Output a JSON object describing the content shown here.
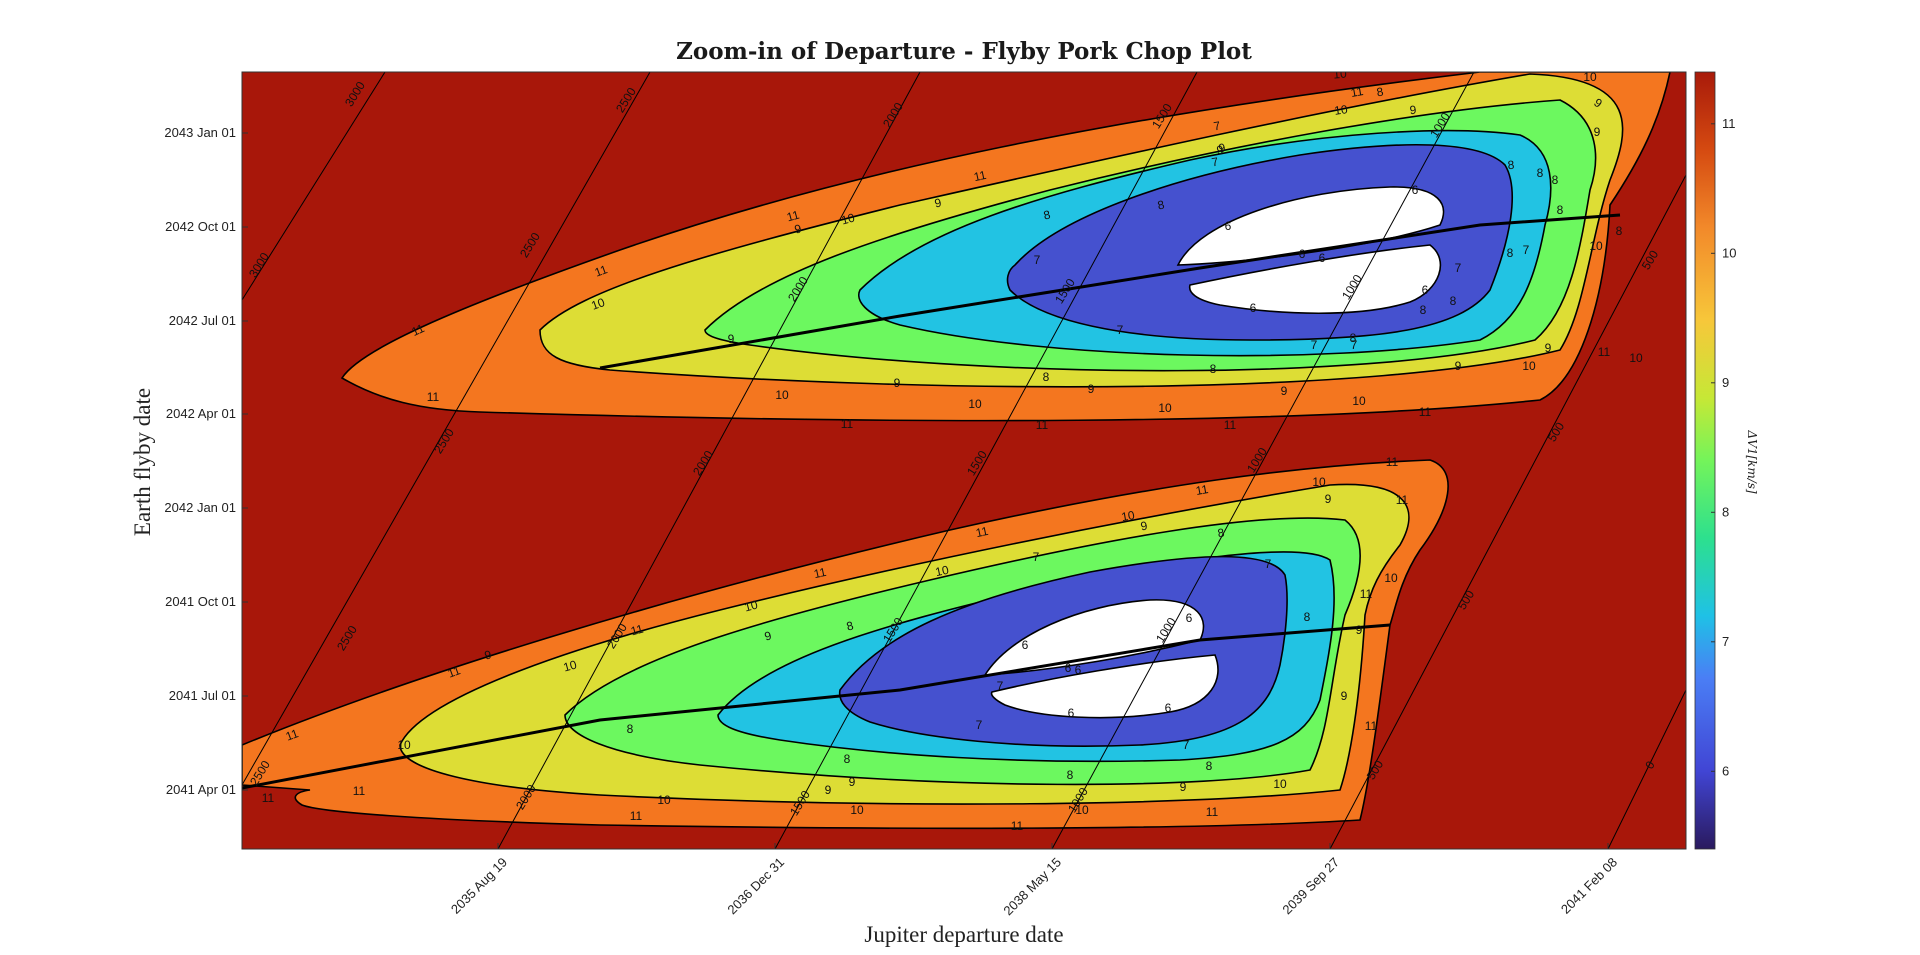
{
  "chart_data": {
    "type": "contour",
    "title": "Zoom-in of Departure - Flyby Pork Chop Plot",
    "xlabel": "Jupiter departure date",
    "ylabel": "Earth flyby date",
    "x_ticks": [
      "2035 Aug 19",
      "2036 Dec 31",
      "2038 May 15",
      "2039 Sep 27",
      "2041 Feb 08"
    ],
    "y_ticks": [
      "2043 Jan 01",
      "2042 Oct 01",
      "2042 Jul 01",
      "2042 Apr 01",
      "2042 Jan 01",
      "2041 Oct 01",
      "2041 Jul 01",
      "2041 Apr 01"
    ],
    "colorbar": {
      "label": "ΔV1[km/s]",
      "ticks": [
        6,
        7,
        8,
        9,
        10,
        11
      ],
      "range": [
        5.4,
        11.4
      ],
      "colormap": [
        "#2a1a5e",
        "#4145d4",
        "#4a7ef5",
        "#1fc1e6",
        "#2de08e",
        "#74f45a",
        "#c6e836",
        "#f7c73a",
        "#f2892a",
        "#d54a11",
        "#a81a0a"
      ]
    },
    "fill_levels": [
      {
        "level": "<6",
        "color": "#ffffff"
      },
      {
        "level": "6-7",
        "color": "#4551cf"
      },
      {
        "level": "7-8",
        "color": "#22c3e3"
      },
      {
        "level": "8-9",
        "color": "#6cf85f"
      },
      {
        "level": "9-10",
        "color": "#dddd35"
      },
      {
        "level": "10-11",
        "color": "#f4761f"
      },
      {
        "level": ">11",
        "color": "#a8170a"
      }
    ],
    "contour_labels": [
      "6",
      "7",
      "8",
      "9",
      "10",
      "11"
    ],
    "tof_labels": [
      "3000",
      "2500",
      "2000",
      "1500",
      "1000",
      "500",
      "0"
    ]
  }
}
